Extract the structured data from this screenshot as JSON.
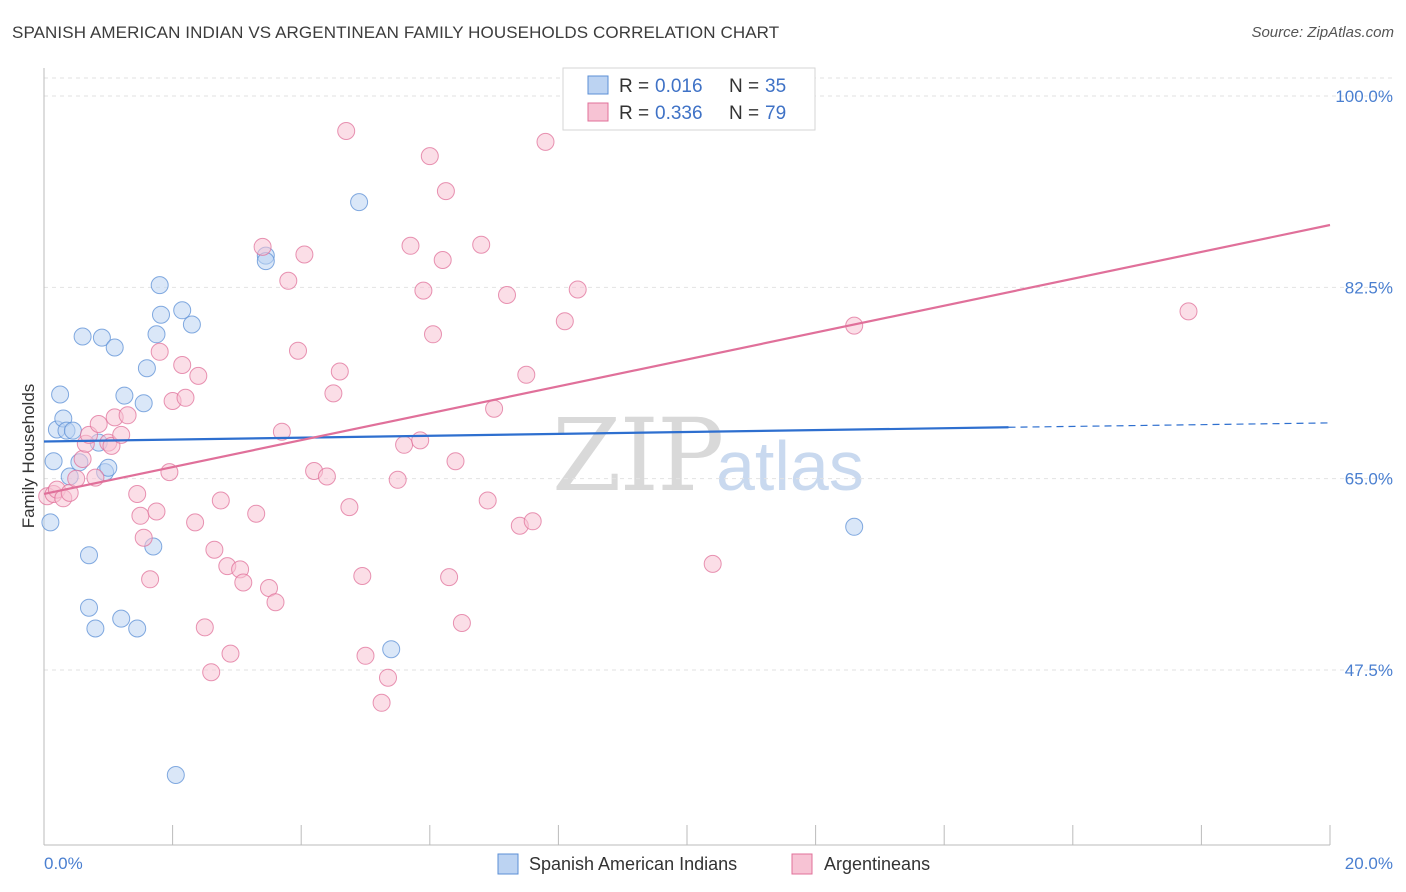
{
  "title": "SPANISH AMERICAN INDIAN VS ARGENTINEAN FAMILY HOUSEHOLDS CORRELATION CHART",
  "source": "Source: ZipAtlas.com",
  "watermark": {
    "zip": "ZIP",
    "atlas": "atlas"
  },
  "chart_data": {
    "type": "scatter",
    "xlabel": "",
    "ylabel": "Family Households",
    "xlim": [
      0,
      20
    ],
    "ylim": [
      31,
      102
    ],
    "x_tick_labels": [
      "0.0%",
      "20.0%"
    ],
    "y_ticks": [
      47.5,
      65.0,
      82.5,
      100.0
    ],
    "y_tick_labels": [
      "47.5%",
      "65.0%",
      "82.5%",
      "100.0%"
    ],
    "legend": {
      "rows": [
        {
          "r_label": "R =",
          "r_value": "0.016",
          "n_label": "N =",
          "n_value": "35"
        },
        {
          "r_label": "R =",
          "r_value": "0.336",
          "n_label": "N =",
          "n_value": "79"
        }
      ]
    },
    "series": [
      {
        "name": "Spanish American Indians",
        "color": "#5b8fd6",
        "fill": "#bcd3f2",
        "trend": {
          "x": [
            0.0,
            15.0
          ],
          "y": [
            68.4,
            69.7
          ],
          "dashed_to": 20.0,
          "dashed_y": 70.1
        },
        "points": [
          [
            0.1,
            61.0
          ],
          [
            0.15,
            66.6
          ],
          [
            0.2,
            69.5
          ],
          [
            0.25,
            72.7
          ],
          [
            0.3,
            70.5
          ],
          [
            0.35,
            69.4
          ],
          [
            0.4,
            65.2
          ],
          [
            0.45,
            69.4
          ],
          [
            0.55,
            66.5
          ],
          [
            0.6,
            78.0
          ],
          [
            0.7,
            58.0
          ],
          [
            0.7,
            53.2
          ],
          [
            0.8,
            51.3
          ],
          [
            0.85,
            68.3
          ],
          [
            0.9,
            77.9
          ],
          [
            0.95,
            65.6
          ],
          [
            1.0,
            66.0
          ],
          [
            1.1,
            77.0
          ],
          [
            1.2,
            52.2
          ],
          [
            1.25,
            72.6
          ],
          [
            1.45,
            51.3
          ],
          [
            1.55,
            71.9
          ],
          [
            1.6,
            75.1
          ],
          [
            1.7,
            58.8
          ],
          [
            1.75,
            78.2
          ],
          [
            1.8,
            82.7
          ],
          [
            1.82,
            80.0
          ],
          [
            2.05,
            37.9
          ],
          [
            2.15,
            80.4
          ],
          [
            2.3,
            79.1
          ],
          [
            3.45,
            85.4
          ],
          [
            3.45,
            84.9
          ],
          [
            4.9,
            90.3
          ],
          [
            5.4,
            49.4
          ],
          [
            12.6,
            60.6
          ]
        ]
      },
      {
        "name": "Argentineans",
        "color": "#e0709a",
        "fill": "#f7c3d4",
        "trend": {
          "x": [
            0.0,
            20.0
          ],
          "y": [
            63.6,
            88.2
          ]
        },
        "points": [
          [
            0.05,
            63.4
          ],
          [
            0.15,
            63.6
          ],
          [
            0.2,
            64.0
          ],
          [
            0.3,
            63.2
          ],
          [
            0.4,
            63.7
          ],
          [
            0.5,
            65.0
          ],
          [
            0.6,
            66.8
          ],
          [
            0.65,
            68.2
          ],
          [
            0.7,
            69.0
          ],
          [
            0.8,
            65.1
          ],
          [
            0.85,
            70.0
          ],
          [
            1.0,
            68.3
          ],
          [
            1.05,
            68.0
          ],
          [
            1.1,
            70.6
          ],
          [
            1.2,
            69.0
          ],
          [
            1.3,
            70.8
          ],
          [
            1.45,
            63.6
          ],
          [
            1.5,
            61.6
          ],
          [
            1.55,
            59.6
          ],
          [
            1.65,
            55.8
          ],
          [
            1.75,
            62.0
          ],
          [
            1.8,
            76.6
          ],
          [
            1.95,
            65.6
          ],
          [
            2.0,
            72.1
          ],
          [
            2.15,
            75.4
          ],
          [
            2.2,
            72.4
          ],
          [
            2.35,
            61.0
          ],
          [
            2.4,
            74.4
          ],
          [
            2.5,
            51.4
          ],
          [
            2.6,
            47.3
          ],
          [
            2.65,
            58.5
          ],
          [
            2.75,
            63.0
          ],
          [
            2.85,
            57.0
          ],
          [
            2.9,
            49.0
          ],
          [
            3.05,
            56.7
          ],
          [
            3.1,
            55.5
          ],
          [
            3.3,
            61.8
          ],
          [
            3.4,
            86.2
          ],
          [
            3.5,
            55.0
          ],
          [
            3.6,
            53.7
          ],
          [
            3.7,
            69.3
          ],
          [
            3.8,
            83.1
          ],
          [
            3.95,
            76.7
          ],
          [
            4.05,
            85.5
          ],
          [
            4.2,
            65.7
          ],
          [
            4.4,
            65.2
          ],
          [
            4.5,
            72.8
          ],
          [
            4.6,
            74.8
          ],
          [
            4.7,
            96.8
          ],
          [
            4.75,
            62.4
          ],
          [
            4.95,
            56.1
          ],
          [
            5.0,
            48.8
          ],
          [
            5.25,
            44.5
          ],
          [
            5.35,
            46.8
          ],
          [
            5.5,
            64.9
          ],
          [
            5.6,
            68.1
          ],
          [
            5.7,
            86.3
          ],
          [
            5.85,
            68.5
          ],
          [
            5.9,
            82.2
          ],
          [
            6.0,
            94.5
          ],
          [
            6.05,
            78.2
          ],
          [
            6.2,
            85.0
          ],
          [
            6.25,
            91.3
          ],
          [
            6.3,
            56.0
          ],
          [
            6.4,
            66.6
          ],
          [
            6.5,
            51.8
          ],
          [
            6.8,
            86.4
          ],
          [
            6.9,
            63.0
          ],
          [
            7.0,
            71.4
          ],
          [
            7.2,
            81.8
          ],
          [
            7.4,
            60.7
          ],
          [
            7.5,
            74.5
          ],
          [
            7.6,
            61.1
          ],
          [
            7.8,
            95.8
          ],
          [
            8.1,
            79.4
          ],
          [
            8.3,
            82.3
          ],
          [
            10.4,
            57.2
          ],
          [
            12.6,
            79.0
          ],
          [
            17.8,
            80.3
          ]
        ]
      }
    ]
  }
}
